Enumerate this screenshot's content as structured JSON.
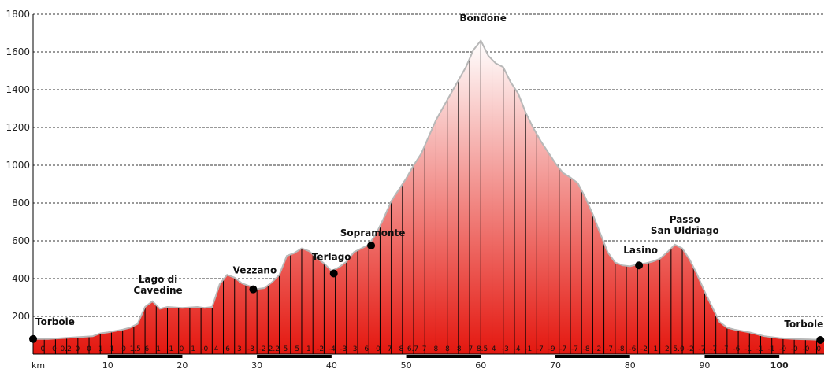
{
  "chart_data": {
    "type": "area",
    "xlabel": "km",
    "ylim": [
      0,
      1800
    ],
    "xlim": [
      0,
      106
    ],
    "yticks": [
      200,
      400,
      600,
      800,
      1000,
      1200,
      1400,
      1600,
      1800
    ],
    "xticks": [
      {
        "value": 10,
        "label": "10"
      },
      {
        "value": 20,
        "label": "20"
      },
      {
        "value": 30,
        "label": "30"
      },
      {
        "value": 40,
        "label": "40"
      },
      {
        "value": 50,
        "label": "50"
      },
      {
        "value": 60,
        "label": "60"
      },
      {
        "value": 70,
        "label": "70"
      },
      {
        "value": 80,
        "label": "80"
      },
      {
        "value": 90,
        "label": "90"
      },
      {
        "value": 100,
        "label": "100"
      }
    ],
    "grid": true,
    "colors": {
      "fill_top": "#ffffff",
      "fill_bottom": "#e4170f",
      "outline": "#b8b8b8",
      "grid": "#333333"
    },
    "profile": {
      "km": [
        0,
        2,
        4,
        6,
        8,
        9,
        10,
        12,
        13,
        14,
        15,
        16,
        17,
        18,
        20,
        22,
        23,
        24,
        25,
        26,
        27,
        28,
        29,
        30,
        31,
        32,
        33,
        34,
        35,
        36,
        37,
        38,
        39,
        40,
        41,
        42,
        43,
        44,
        45,
        46,
        47,
        48,
        49,
        50,
        51,
        52,
        53,
        54,
        55,
        56,
        57,
        58,
        59,
        60,
        61,
        62,
        63,
        64,
        65,
        66,
        67,
        68,
        69,
        70,
        71,
        72,
        73,
        74,
        75,
        76,
        77,
        78,
        79,
        80,
        81,
        82,
        83,
        84,
        85,
        86,
        87,
        88,
        89,
        90,
        91,
        92,
        93,
        94,
        96,
        98,
        100,
        102,
        104,
        106
      ],
      "ele": [
        80,
        80,
        85,
        90,
        95,
        110,
        115,
        130,
        140,
        160,
        250,
        280,
        240,
        250,
        245,
        250,
        245,
        250,
        370,
        420,
        405,
        375,
        360,
        345,
        350,
        380,
        420,
        520,
        535,
        560,
        545,
        510,
        480,
        440,
        460,
        490,
        540,
        560,
        580,
        640,
        720,
        810,
        870,
        930,
        1000,
        1060,
        1150,
        1240,
        1310,
        1380,
        1450,
        1520,
        1610,
        1660,
        1580,
        1540,
        1520,
        1440,
        1380,
        1280,
        1200,
        1130,
        1070,
        1010,
        960,
        935,
        905,
        830,
        740,
        640,
        540,
        485,
        470,
        465,
        475,
        480,
        490,
        505,
        540,
        580,
        560,
        500,
        420,
        330,
        250,
        170,
        140,
        130,
        115,
        95,
        85,
        80,
        78,
        75
      ]
    },
    "places": [
      {
        "name": "Torbole",
        "km": 0,
        "ele": 80,
        "dot": true
      },
      {
        "name": "Lago di Cavedine",
        "km": 16,
        "ele": 280,
        "dot": false
      },
      {
        "name": "Vezzano",
        "km": 29.5,
        "ele": 343,
        "dot": true
      },
      {
        "name": "Terlago",
        "km": 40.3,
        "ele": 427,
        "dot": true
      },
      {
        "name": "Sopramonte",
        "km": 45.3,
        "ele": 575,
        "dot": true
      },
      {
        "name": "Bondone",
        "km": 60.3,
        "ele": 1655,
        "dot": false
      },
      {
        "name": "Lasino",
        "km": 81.2,
        "ele": 470,
        "dot": true
      },
      {
        "name": "Passo San Uldriago",
        "km": 86.5,
        "ele": 580,
        "dot": false
      },
      {
        "name": "Torbole",
        "km": 105.5,
        "ele": 75,
        "dot": true
      }
    ],
    "grades": [
      "0",
      "0",
      "0.2",
      "0",
      "0",
      "1",
      "1",
      "0",
      "1.5",
      "6",
      "1",
      "-1",
      "0",
      "1",
      "-0",
      "4",
      "6",
      "3",
      "-3",
      "-2",
      "2.2",
      "5",
      "5",
      "1",
      "-2",
      "-4",
      "-3",
      "3",
      "6",
      "0",
      "7",
      "8",
      "6.7",
      "7",
      "8",
      "8",
      "8",
      "7",
      "8.5",
      "4",
      "-3",
      "-4",
      "-1",
      "-7",
      "-9",
      "-7",
      "-7",
      "-8",
      "-2",
      "-7",
      "-8",
      "-6",
      "-2",
      "1",
      "2",
      "5.0",
      "-2",
      "-7",
      "-7",
      "-7",
      "-6",
      "-1",
      "-1",
      "-1",
      "-0",
      "-0",
      "-0",
      "-0"
    ]
  }
}
